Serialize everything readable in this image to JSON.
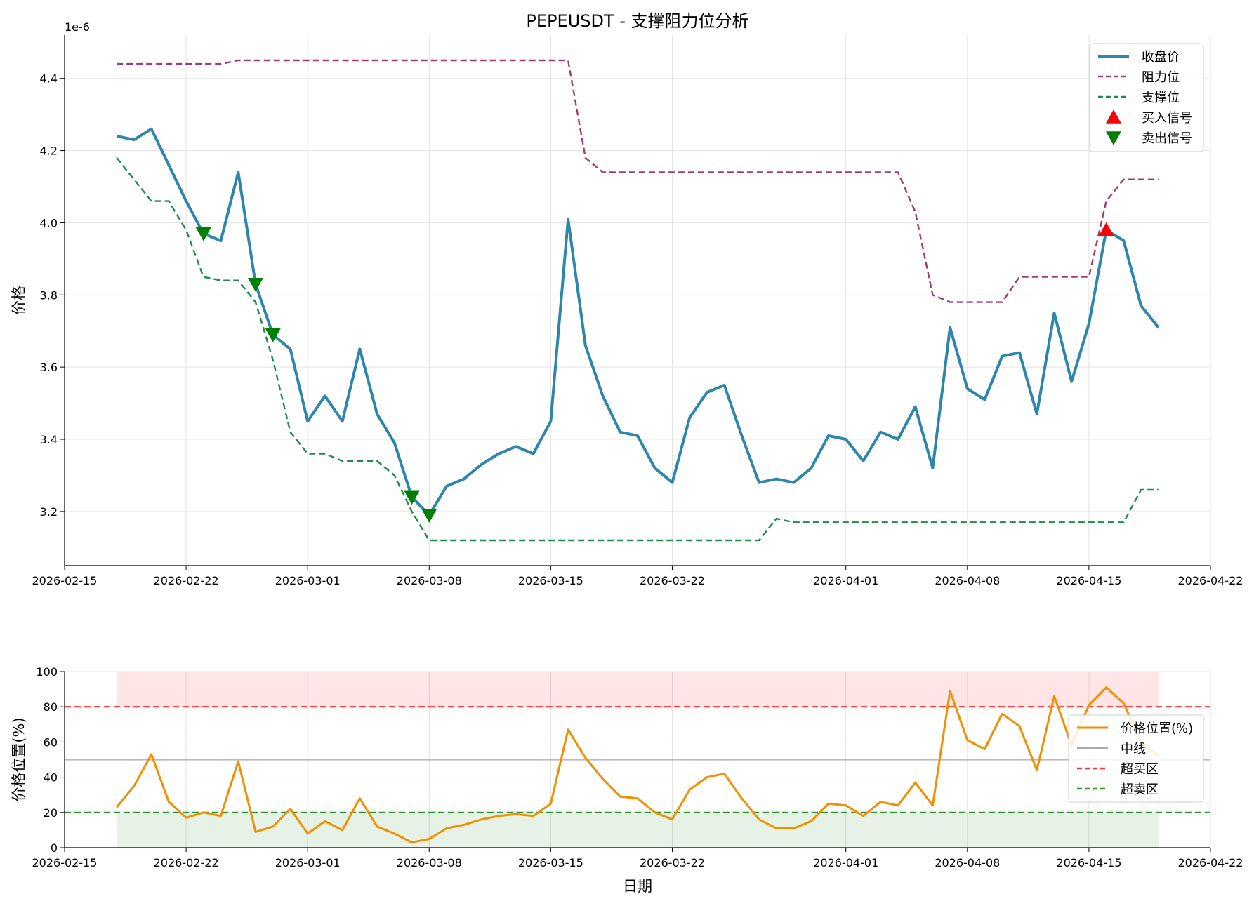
{
  "chart_data": [
    {
      "type": "line",
      "title": "PEPEUSDT - 支撑阻力位分析",
      "ylabel": "价格",
      "xlabel": "",
      "offset_label": "1e-6",
      "xlim": [
        "2026-02-15",
        "2026-04-22"
      ],
      "ylim": [
        3.05,
        4.52
      ],
      "x_ticks": [
        "2026-02-15",
        "2026-02-22",
        "2026-03-01",
        "2026-03-08",
        "2026-03-15",
        "2026-03-22",
        "2026-04-01",
        "2026-04-08",
        "2026-04-15",
        "2026-04-22"
      ],
      "y_ticks": [
        "3.2",
        "3.4",
        "3.6",
        "3.8",
        "4.0",
        "4.2",
        "4.4"
      ],
      "grid": true,
      "legend_position": "top-right",
      "start_date": "2026-02-18",
      "dates": [
        "2026-02-18",
        "2026-02-19",
        "2026-02-20",
        "2026-02-21",
        "2026-02-22",
        "2026-02-23",
        "2026-02-24",
        "2026-02-25",
        "2026-02-26",
        "2026-02-27",
        "2026-02-28",
        "2026-03-01",
        "2026-03-02",
        "2026-03-03",
        "2026-03-04",
        "2026-03-05",
        "2026-03-06",
        "2026-03-07",
        "2026-03-08",
        "2026-03-09",
        "2026-03-10",
        "2026-03-11",
        "2026-03-12",
        "2026-03-13",
        "2026-03-14",
        "2026-03-15",
        "2026-03-16",
        "2026-03-17",
        "2026-03-18",
        "2026-03-19",
        "2026-03-20",
        "2026-03-21",
        "2026-03-22",
        "2026-03-23",
        "2026-03-24",
        "2026-03-25",
        "2026-03-26",
        "2026-03-27",
        "2026-03-28",
        "2026-03-29",
        "2026-03-30",
        "2026-03-31",
        "2026-04-01",
        "2026-04-02",
        "2026-04-03",
        "2026-04-04",
        "2026-04-05",
        "2026-04-06",
        "2026-04-07",
        "2026-04-08",
        "2026-04-09",
        "2026-04-10",
        "2026-04-11",
        "2026-04-12",
        "2026-04-13",
        "2026-04-14",
        "2026-04-15",
        "2026-04-16",
        "2026-04-17",
        "2026-04-18",
        "2026-04-19"
      ],
      "series": [
        {
          "name": "收盘价",
          "color": "#2E86AB",
          "style": "solid",
          "values": [
            4.24,
            4.23,
            4.26,
            4.16,
            4.06,
            3.97,
            3.95,
            4.14,
            3.83,
            3.69,
            3.65,
            3.45,
            3.52,
            3.45,
            3.65,
            3.47,
            3.39,
            3.24,
            3.19,
            3.27,
            3.29,
            3.33,
            3.36,
            3.38,
            3.36,
            3.45,
            4.01,
            3.66,
            3.52,
            3.42,
            3.41,
            3.32,
            3.28,
            3.46,
            3.53,
            3.55,
            3.41,
            3.28,
            3.29,
            3.28,
            3.32,
            3.41,
            3.4,
            3.34,
            3.42,
            3.4,
            3.49,
            3.32,
            3.71,
            3.54,
            3.51,
            3.63,
            3.64,
            3.47,
            3.75,
            3.56,
            3.72,
            3.98,
            3.95,
            3.77,
            3.71
          ]
        },
        {
          "name": "阻力位",
          "color": "#A23B72",
          "style": "dashed",
          "values": [
            4.44,
            4.44,
            4.44,
            4.44,
            4.44,
            4.44,
            4.44,
            4.45,
            4.45,
            4.45,
            4.45,
            4.45,
            4.45,
            4.45,
            4.45,
            4.45,
            4.45,
            4.45,
            4.45,
            4.45,
            4.45,
            4.45,
            4.45,
            4.45,
            4.45,
            4.45,
            4.45,
            4.18,
            4.14,
            4.14,
            4.14,
            4.14,
            4.14,
            4.14,
            4.14,
            4.14,
            4.14,
            4.14,
            4.14,
            4.14,
            4.14,
            4.14,
            4.14,
            4.14,
            4.14,
            4.14,
            4.03,
            3.8,
            3.78,
            3.78,
            3.78,
            3.78,
            3.85,
            3.85,
            3.85,
            3.85,
            3.85,
            4.06,
            4.12,
            4.12,
            4.12
          ]
        },
        {
          "name": "支撑位",
          "color": "#1E8A4C",
          "style": "dashed",
          "values": [
            4.18,
            4.12,
            4.06,
            4.06,
            3.98,
            3.85,
            3.84,
            3.84,
            3.78,
            3.62,
            3.42,
            3.36,
            3.36,
            3.34,
            3.34,
            3.34,
            3.3,
            3.2,
            3.12,
            3.12,
            3.12,
            3.12,
            3.12,
            3.12,
            3.12,
            3.12,
            3.12,
            3.12,
            3.12,
            3.12,
            3.12,
            3.12,
            3.12,
            3.12,
            3.12,
            3.12,
            3.12,
            3.12,
            3.18,
            3.17,
            3.17,
            3.17,
            3.17,
            3.17,
            3.17,
            3.17,
            3.17,
            3.17,
            3.17,
            3.17,
            3.17,
            3.17,
            3.17,
            3.17,
            3.17,
            3.17,
            3.17,
            3.17,
            3.17,
            3.26,
            3.26
          ]
        }
      ],
      "buy_signals": {
        "name": "买入信号",
        "color": "#FF0000",
        "points": [
          {
            "date": "2026-04-16",
            "value": 3.98
          }
        ]
      },
      "sell_signals": {
        "name": "卖出信号",
        "color": "#008000",
        "points": [
          {
            "date": "2026-02-23",
            "value": 3.97
          },
          {
            "date": "2026-02-26",
            "value": 3.83
          },
          {
            "date": "2026-02-27",
            "value": 3.69
          },
          {
            "date": "2026-03-07",
            "value": 3.24
          },
          {
            "date": "2026-03-08",
            "value": 3.19
          }
        ]
      }
    },
    {
      "type": "line",
      "title": "",
      "ylabel": "价格位置(%)",
      "xlabel": "日期",
      "xlim": [
        "2026-02-15",
        "2026-04-22"
      ],
      "ylim": [
        0,
        100
      ],
      "x_ticks": [
        "2026-02-15",
        "2026-02-22",
        "2026-03-01",
        "2026-03-08",
        "2026-03-15",
        "2026-03-22",
        "2026-04-01",
        "2026-04-08",
        "2026-04-15",
        "2026-04-22"
      ],
      "y_ticks": [
        "0",
        "20",
        "40",
        "60",
        "80",
        "100"
      ],
      "grid": true,
      "legend_position": "right",
      "series": [
        {
          "name": "价格位置(%)",
          "color": "#F18F01",
          "style": "solid",
          "values": [
            23,
            35,
            53,
            26,
            17,
            20,
            18,
            49,
            9,
            12,
            22,
            8,
            15,
            10,
            28,
            12,
            8,
            3,
            5,
            11,
            13,
            16,
            18,
            19,
            18,
            25,
            67,
            51,
            39,
            29,
            28,
            20,
            16,
            33,
            40,
            42,
            28,
            16,
            11,
            11,
            15,
            25,
            24,
            18,
            26,
            24,
            37,
            24,
            89,
            61,
            56,
            76,
            69,
            44,
            86,
            58,
            81,
            91,
            82,
            60,
            52
          ]
        },
        {
          "name": "中线",
          "color": "#AAAAAA",
          "style": "solid",
          "value": 50
        },
        {
          "name": "超买区",
          "color": "#FF3333",
          "style": "dashed",
          "value": 80
        },
        {
          "name": "超卖区",
          "color": "#2A9A2A",
          "style": "dashed",
          "value": 20
        }
      ]
    }
  ]
}
